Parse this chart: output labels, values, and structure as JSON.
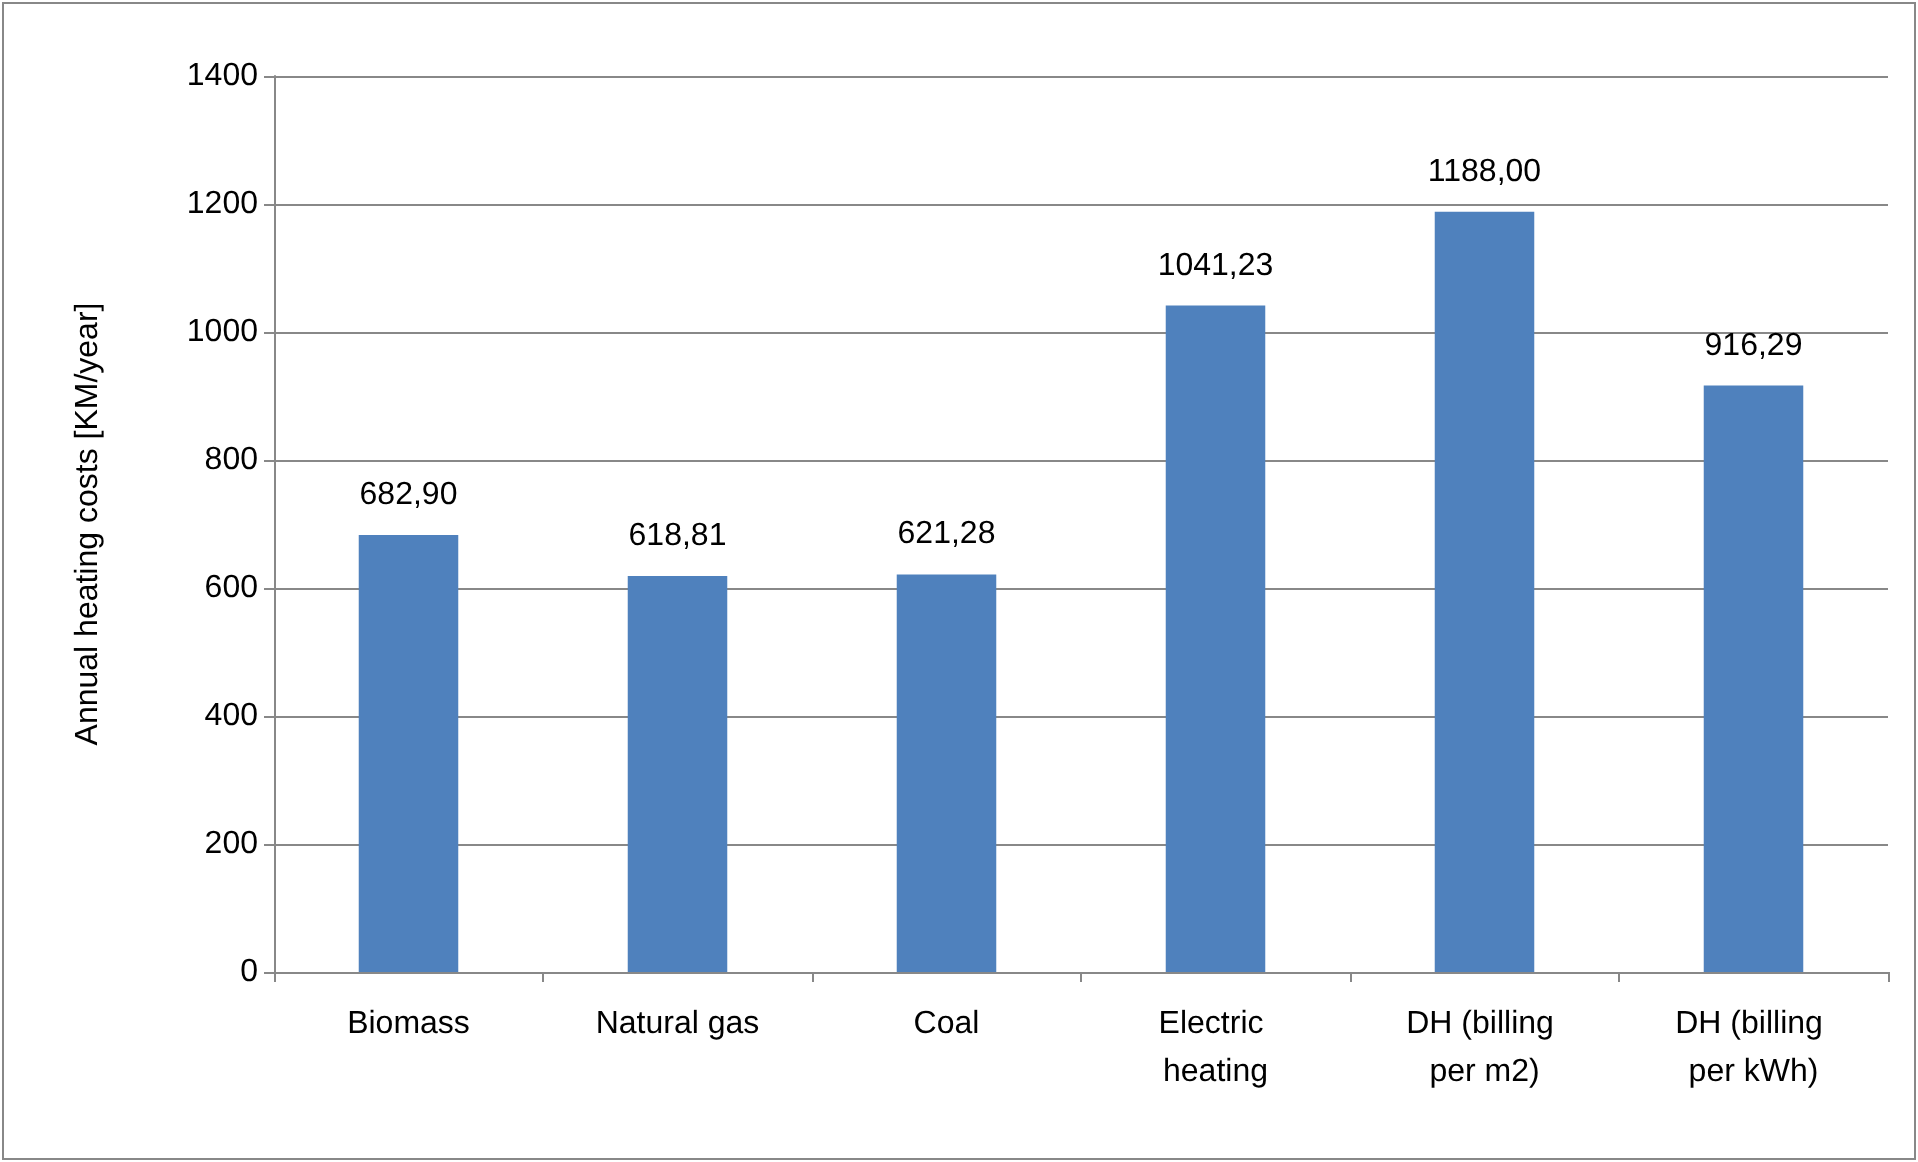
{
  "chart_data": {
    "type": "bar",
    "ylabel": "Annual heating costs [KM/year]",
    "categories": [
      "Biomass",
      "Natural gas",
      "Coal",
      "Electric heating",
      "DH (billing per m2)",
      "DH (billing per kWh)"
    ],
    "values": [
      682.9,
      618.81,
      621.28,
      1041.23,
      1188.0,
      916.29
    ],
    "value_labels": [
      "682,90",
      "618,81",
      "621,28",
      "1041,23",
      "1188,00",
      "916,29"
    ],
    "color": "#4f81bd",
    "ylim": [
      0,
      1400
    ],
    "yticks": [
      0,
      200,
      400,
      600,
      800,
      1000,
      1200,
      1400
    ],
    "grid": "y"
  }
}
